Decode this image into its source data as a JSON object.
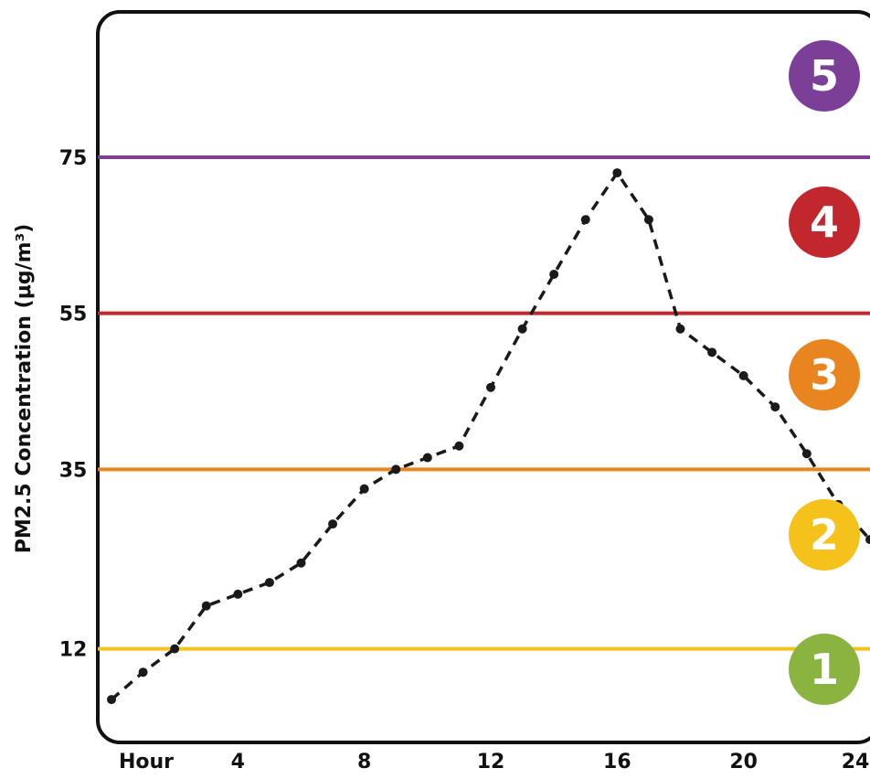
{
  "chart_data": {
    "type": "line",
    "ylabel": "PM2.5 Concentration (μg/m³)",
    "x_tick_labels": [
      "Hour",
      "4",
      "8",
      "12",
      "16",
      "20",
      "24"
    ],
    "x_ticks": [
      0,
      4,
      8,
      12,
      16,
      20,
      24
    ],
    "y_ticks": [
      12,
      35,
      55,
      75
    ],
    "xlim": [
      0,
      24
    ],
    "ylim": [
      0,
      75
    ],
    "series": [
      {
        "x": [
          0,
          1,
          2,
          3,
          4,
          5,
          6,
          7,
          8,
          9,
          10,
          11,
          12,
          13,
          14,
          15,
          16,
          17,
          18,
          19,
          20,
          21,
          22,
          23,
          24
        ],
        "y": [
          5.5,
          9,
          12,
          17.5,
          19,
          20.5,
          23,
          28,
          32.5,
          35,
          36.5,
          38,
          45.5,
          53,
          60,
          67,
          73,
          67,
          53,
          50,
          47,
          43,
          37,
          30.5,
          26
        ],
        "color": "#1a1a1a",
        "style": "dashed"
      }
    ],
    "thresholds": [
      {
        "value": 12,
        "color": "#f5c21b"
      },
      {
        "value": 35,
        "color": "#e8851f"
      },
      {
        "value": 55,
        "color": "#c1272d"
      },
      {
        "value": 75,
        "color": "#7b3f98"
      }
    ],
    "category_badges": [
      {
        "label": "1",
        "color": "#8ab33f"
      },
      {
        "label": "2",
        "color": "#f5c21b"
      },
      {
        "label": "3",
        "color": "#e8851f"
      },
      {
        "label": "4",
        "color": "#c1272d"
      },
      {
        "label": "5",
        "color": "#7b3f98"
      }
    ],
    "grid": false
  }
}
